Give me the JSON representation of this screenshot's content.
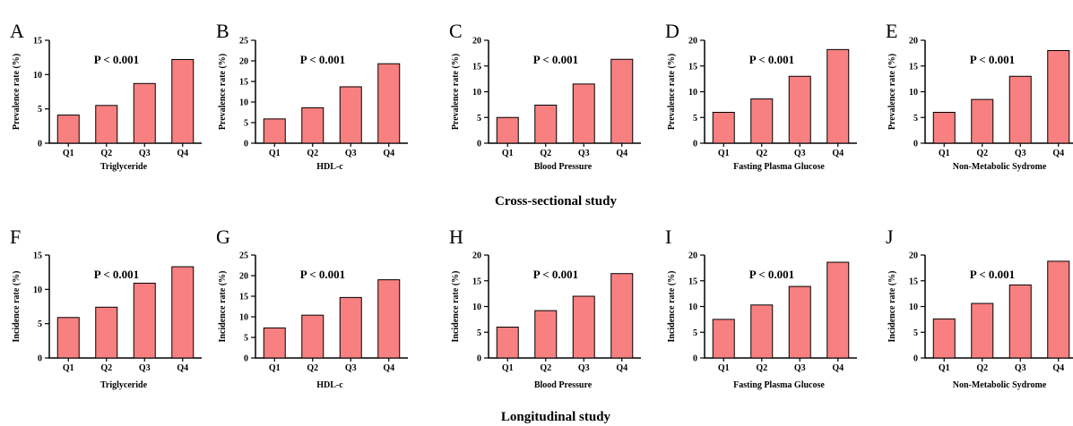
{
  "colors": {
    "bar_fill": "#f98080",
    "bar_stroke": "#000000",
    "axis": "#000000"
  },
  "section_titles": [
    "Cross-sectional study",
    "Longitudinal study"
  ],
  "chart_data": [
    {
      "panel": "A",
      "type": "bar",
      "title": "",
      "categories": [
        "Q1",
        "Q2",
        "Q3",
        "Q4"
      ],
      "values": [
        4.1,
        5.5,
        8.7,
        12.2
      ],
      "xlabel": "Triglyceride",
      "ylabel": "Prevalence rate (%)",
      "ylim": [
        0,
        15
      ],
      "yticks": [
        0,
        5,
        10,
        15
      ],
      "annotation": "P < 0.001"
    },
    {
      "panel": "B",
      "type": "bar",
      "title": "",
      "categories": [
        "Q1",
        "Q2",
        "Q3",
        "Q4"
      ],
      "values": [
        5.9,
        8.6,
        13.7,
        19.3
      ],
      "xlabel": "HDL-c",
      "ylabel": "Prevalence rate (%)",
      "ylim": [
        0,
        25
      ],
      "yticks": [
        0,
        5,
        10,
        15,
        20,
        25
      ],
      "annotation": "P < 0.001"
    },
    {
      "panel": "C",
      "type": "bar",
      "title": "",
      "categories": [
        "Q1",
        "Q2",
        "Q3",
        "Q4"
      ],
      "values": [
        5.0,
        7.4,
        11.5,
        16.3
      ],
      "xlabel": "Blood Pressure",
      "ylabel": "Prevalence rate (%)",
      "ylim": [
        0,
        20
      ],
      "yticks": [
        0,
        5,
        10,
        15,
        20
      ],
      "annotation": "P < 0.001"
    },
    {
      "panel": "D",
      "type": "bar",
      "title": "",
      "categories": [
        "Q1",
        "Q2",
        "Q3",
        "Q4"
      ],
      "values": [
        6.0,
        8.6,
        13.0,
        18.2
      ],
      "xlabel": "Fasting Plasma Glucose",
      "ylabel": "Prevalence rate (%)",
      "ylim": [
        0,
        20
      ],
      "yticks": [
        0,
        5,
        10,
        15,
        20
      ],
      "annotation": "P < 0.001"
    },
    {
      "panel": "E",
      "type": "bar",
      "title": "",
      "categories": [
        "Q1",
        "Q2",
        "Q3",
        "Q4"
      ],
      "values": [
        6.0,
        8.5,
        13.0,
        18.0
      ],
      "xlabel": "Non-Metabolic Sydrome",
      "ylabel": "Prevalence rate (%)",
      "ylim": [
        0,
        20
      ],
      "yticks": [
        0,
        5,
        10,
        15,
        20
      ],
      "annotation": "P < 0.001"
    },
    {
      "panel": "F",
      "type": "bar",
      "title": "",
      "categories": [
        "Q1",
        "Q2",
        "Q3",
        "Q4"
      ],
      "values": [
        5.9,
        7.4,
        10.9,
        13.3
      ],
      "xlabel": "Triglyceride",
      "ylabel": "Incidence rate (%)",
      "ylim": [
        0,
        15
      ],
      "yticks": [
        0,
        5,
        10,
        15
      ],
      "annotation": "P < 0.001"
    },
    {
      "panel": "G",
      "type": "bar",
      "title": "",
      "categories": [
        "Q1",
        "Q2",
        "Q3",
        "Q4"
      ],
      "values": [
        7.3,
        10.4,
        14.7,
        19.0
      ],
      "xlabel": "HDL-c",
      "ylabel": "Incidence rate (%)",
      "ylim": [
        0,
        25
      ],
      "yticks": [
        0,
        5,
        10,
        15,
        20,
        25
      ],
      "annotation": "P < 0.001"
    },
    {
      "panel": "H",
      "type": "bar",
      "title": "",
      "categories": [
        "Q1",
        "Q2",
        "Q3",
        "Q4"
      ],
      "values": [
        6.0,
        9.2,
        12.0,
        16.4
      ],
      "xlabel": "Blood Pressure",
      "ylabel": "Incidence rate (%)",
      "ylim": [
        0,
        20
      ],
      "yticks": [
        0,
        5,
        10,
        15,
        20
      ],
      "annotation": "P < 0.001"
    },
    {
      "panel": "I",
      "type": "bar",
      "title": "",
      "categories": [
        "Q1",
        "Q2",
        "Q3",
        "Q4"
      ],
      "values": [
        7.5,
        10.3,
        13.9,
        18.6
      ],
      "xlabel": "Fasting Plasma Glucose",
      "ylabel": "Incidence rate (%)",
      "ylim": [
        0,
        20
      ],
      "yticks": [
        0,
        5,
        10,
        15,
        20
      ],
      "annotation": "P < 0.001"
    },
    {
      "panel": "J",
      "type": "bar",
      "title": "",
      "categories": [
        "Q1",
        "Q2",
        "Q3",
        "Q4"
      ],
      "values": [
        7.6,
        10.6,
        14.2,
        18.8
      ],
      "xlabel": "Non-Metabolic Sydrome",
      "ylabel": "Incidence rate (%)",
      "ylim": [
        0,
        20
      ],
      "yticks": [
        0,
        5,
        10,
        15,
        20
      ],
      "annotation": "P < 0.001"
    }
  ]
}
